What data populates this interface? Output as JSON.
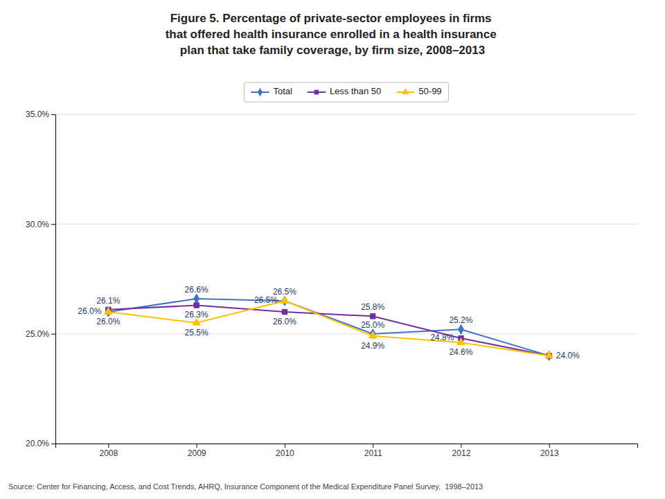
{
  "chart_data": {
    "type": "line",
    "title": "Figure 5. Percentage of private-sector employees in firms\nthat offered health insurance enrolled in a health insurance\nplan that take family coverage, by firm size, 2008–2013",
    "source": "Source: Center for Financing, Access, and Cost Trends, AHRQ, Insurance Component of the Medical Expenditure Panel Survey,  1998–2013",
    "x": [
      2008,
      2009,
      2010,
      2011,
      2012,
      2013
    ],
    "xlim": [
      2007.4,
      2014.0
    ],
    "xticks": [
      2008,
      2009,
      2010,
      2011,
      2012,
      2013
    ],
    "ylim": [
      20.0,
      35.0
    ],
    "yticks": [
      {
        "value": 20.0,
        "label": "20.0%"
      },
      {
        "value": 25.0,
        "label": "25.0%"
      },
      {
        "value": 30.0,
        "label": "30.0%"
      },
      {
        "value": 35.0,
        "label": "35.0%"
      }
    ],
    "grid": true,
    "legend": "top",
    "data_labels": true,
    "series": [
      {
        "name": "Total",
        "color": "#4472c4",
        "marker": "diamond",
        "values": [
          26.0,
          26.6,
          26.5,
          25.0,
          25.2,
          24.0
        ],
        "value_labels": [
          "26.0%",
          "26.6%",
          "26.5%",
          "25.0%",
          "25.2%",
          "24.0%"
        ]
      },
      {
        "name": "Less than 50",
        "color": "#7030a0",
        "marker": "square",
        "values": [
          26.1,
          26.3,
          26.0,
          25.8,
          24.8,
          24.0
        ],
        "value_labels": [
          "26.1%",
          "26.3%",
          "26.0%",
          "25.8%",
          "24.8%",
          null
        ]
      },
      {
        "name": "50-99",
        "color": "#ffc000",
        "marker": "triangle",
        "values": [
          26.0,
          25.5,
          26.5,
          24.9,
          24.6,
          24.0
        ],
        "value_labels": [
          "26.0%",
          "25.5%",
          "26.5%",
          "24.9%",
          "24.6%",
          null
        ]
      }
    ]
  }
}
